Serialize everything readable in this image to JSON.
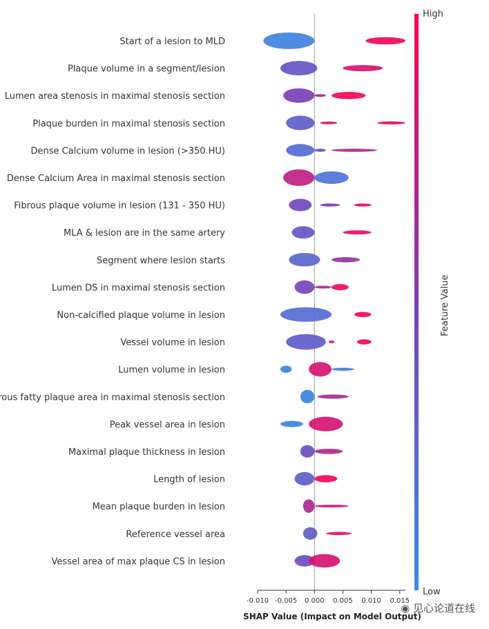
{
  "chart_data": {
    "type": "scatter",
    "subtype": "shap-beeswarm",
    "xlabel": "SHAP Value (Impact on Model Output)",
    "xlim": [
      -0.01,
      0.016
    ],
    "xticks": [
      -0.01,
      -0.005,
      0.0,
      0.005,
      0.01,
      0.015
    ],
    "xtick_labels": [
      "-0.010",
      "-0.005",
      "0.000",
      "0.005",
      "0.010",
      "0.015"
    ],
    "colorbar": {
      "title": "Feature Value",
      "high_label": "High",
      "low_label": "Low",
      "high_color": "#ff0052",
      "low_color": "#3a8be6",
      "mid_color": "#7a3fb5"
    },
    "features": [
      {
        "name": "Start of a lesion to MLD",
        "clusters": [
          {
            "x0": -0.009,
            "x1": 0.0,
            "v": 0.05,
            "h": 0.8
          },
          {
            "x0": 0.009,
            "x1": 0.016,
            "v": 0.95,
            "h": 0.35
          }
        ]
      },
      {
        "name": "Plaque volume in a segment/lesion",
        "clusters": [
          {
            "x0": -0.006,
            "x1": 0.0005,
            "v": 0.35,
            "h": 0.7
          },
          {
            "x0": 0.005,
            "x1": 0.012,
            "v": 0.85,
            "h": 0.3
          }
        ]
      },
      {
        "name": "Lumen area stenosis in maximal stenosis section",
        "clusters": [
          {
            "x0": -0.0055,
            "x1": 0.0,
            "v": 0.5,
            "h": 0.7
          },
          {
            "x0": 0.0,
            "x1": 0.002,
            "v": 0.7,
            "h": 0.1
          },
          {
            "x0": 0.003,
            "x1": 0.009,
            "v": 0.95,
            "h": 0.35
          }
        ]
      },
      {
        "name": "Plaque burden in maximal stenosis section",
        "clusters": [
          {
            "x0": -0.005,
            "x1": 0.0,
            "v": 0.3,
            "h": 0.7
          },
          {
            "x0": 0.001,
            "x1": 0.004,
            "v": 0.85,
            "h": 0.12
          },
          {
            "x0": 0.011,
            "x1": 0.016,
            "v": 0.9,
            "h": 0.15
          }
        ]
      },
      {
        "name": "Dense Calcium volume in lesion (>350 HU)",
        "clusters": [
          {
            "x0": -0.005,
            "x1": 0.0,
            "v": 0.2,
            "h": 0.6
          },
          {
            "x0": 0.0,
            "x1": 0.002,
            "v": 0.4,
            "h": 0.15
          },
          {
            "x0": 0.003,
            "x1": 0.011,
            "v": 0.7,
            "h": 0.15
          }
        ]
      },
      {
        "name": "Dense Calcium Area in maximal stenosis section",
        "clusters": [
          {
            "x0": -0.0055,
            "x1": 0.0,
            "v": 0.75,
            "h": 0.8
          },
          {
            "x0": 0.0,
            "x1": 0.006,
            "v": 0.15,
            "h": 0.6
          }
        ]
      },
      {
        "name": "Fibrous plaque volume in lesion (131 - 350 HU)",
        "clusters": [
          {
            "x0": -0.0045,
            "x1": -0.0005,
            "v": 0.45,
            "h": 0.6
          },
          {
            "x0": 0.001,
            "x1": 0.0045,
            "v": 0.55,
            "h": 0.15
          },
          {
            "x0": 0.007,
            "x1": 0.01,
            "v": 0.9,
            "h": 0.15
          }
        ]
      },
      {
        "name": "MLA & lesion are in the same artery",
        "clusters": [
          {
            "x0": -0.004,
            "x1": 0.0,
            "v": 0.35,
            "h": 0.6
          },
          {
            "x0": 0.005,
            "x1": 0.01,
            "v": 0.9,
            "h": 0.2
          }
        ]
      },
      {
        "name": "Segment where lesion starts",
        "clusters": [
          {
            "x0": -0.0045,
            "x1": 0.001,
            "v": 0.25,
            "h": 0.65
          },
          {
            "x0": 0.003,
            "x1": 0.008,
            "v": 0.6,
            "h": 0.25
          }
        ]
      },
      {
        "name": "Lumen DS in maximal stenosis section",
        "clusters": [
          {
            "x0": -0.0035,
            "x1": 0.0,
            "v": 0.45,
            "h": 0.65
          },
          {
            "x0": 0.0,
            "x1": 0.003,
            "v": 0.7,
            "h": 0.12
          },
          {
            "x0": 0.003,
            "x1": 0.006,
            "v": 0.95,
            "h": 0.3
          }
        ]
      },
      {
        "name": "Non-calcified plaque volume in lesion",
        "clusters": [
          {
            "x0": -0.006,
            "x1": 0.003,
            "v": 0.2,
            "h": 0.7
          },
          {
            "x0": 0.007,
            "x1": 0.01,
            "v": 0.95,
            "h": 0.25
          }
        ]
      },
      {
        "name": "Vessel volume in lesion",
        "clusters": [
          {
            "x0": -0.005,
            "x1": 0.002,
            "v": 0.3,
            "h": 0.75
          },
          {
            "x0": 0.0025,
            "x1": 0.0035,
            "v": 0.8,
            "h": 0.12
          },
          {
            "x0": 0.0075,
            "x1": 0.01,
            "v": 0.95,
            "h": 0.25
          }
        ]
      },
      {
        "name": "Lumen volume in lesion",
        "clusters": [
          {
            "x0": -0.006,
            "x1": -0.004,
            "v": 0.05,
            "h": 0.35
          },
          {
            "x0": -0.001,
            "x1": 0.003,
            "v": 0.85,
            "h": 0.7
          },
          {
            "x0": 0.003,
            "x1": 0.007,
            "v": 0.1,
            "h": 0.15
          }
        ]
      },
      {
        "name": "Fibrous fatty plaque area in maximal stenosis section",
        "clusters": [
          {
            "x0": -0.0025,
            "x1": 0.0,
            "v": 0.05,
            "h": 0.65
          },
          {
            "x0": 0.0005,
            "x1": 0.006,
            "v": 0.65,
            "h": 0.2
          }
        ]
      },
      {
        "name": "Peak vessel area in lesion",
        "clusters": [
          {
            "x0": -0.006,
            "x1": -0.002,
            "v": 0.05,
            "h": 0.3
          },
          {
            "x0": -0.001,
            "x1": 0.005,
            "v": 0.85,
            "h": 0.7
          }
        ]
      },
      {
        "name": "Maximal plaque thickness in lesion",
        "clusters": [
          {
            "x0": -0.0025,
            "x1": 0.0,
            "v": 0.4,
            "h": 0.6
          },
          {
            "x0": 0.0,
            "x1": 0.005,
            "v": 0.7,
            "h": 0.25
          }
        ]
      },
      {
        "name": "Length of lesion",
        "clusters": [
          {
            "x0": -0.0035,
            "x1": 0.0,
            "v": 0.3,
            "h": 0.65
          },
          {
            "x0": 0.0,
            "x1": 0.004,
            "v": 0.95,
            "h": 0.35
          }
        ]
      },
      {
        "name": "Mean plaque burden in lesion",
        "clusters": [
          {
            "x0": -0.002,
            "x1": 0.0,
            "v": 0.7,
            "h": 0.65
          },
          {
            "x0": 0.0,
            "x1": 0.006,
            "v": 0.8,
            "h": 0.08
          }
        ]
      },
      {
        "name": "Reference vessel area",
        "clusters": [
          {
            "x0": -0.002,
            "x1": 0.0005,
            "v": 0.3,
            "h": 0.6
          },
          {
            "x0": 0.002,
            "x1": 0.0065,
            "v": 0.95,
            "h": 0.15
          }
        ]
      },
      {
        "name": "Vessel area of max plaque CS in lesion",
        "clusters": [
          {
            "x0": -0.0035,
            "x1": 0.0,
            "v": 0.4,
            "h": 0.55
          },
          {
            "x0": -0.001,
            "x1": 0.0045,
            "v": 0.85,
            "h": 0.65
          }
        ]
      }
    ]
  },
  "watermark": {
    "icon": "wechat-icon",
    "text": "见心论道在线"
  }
}
